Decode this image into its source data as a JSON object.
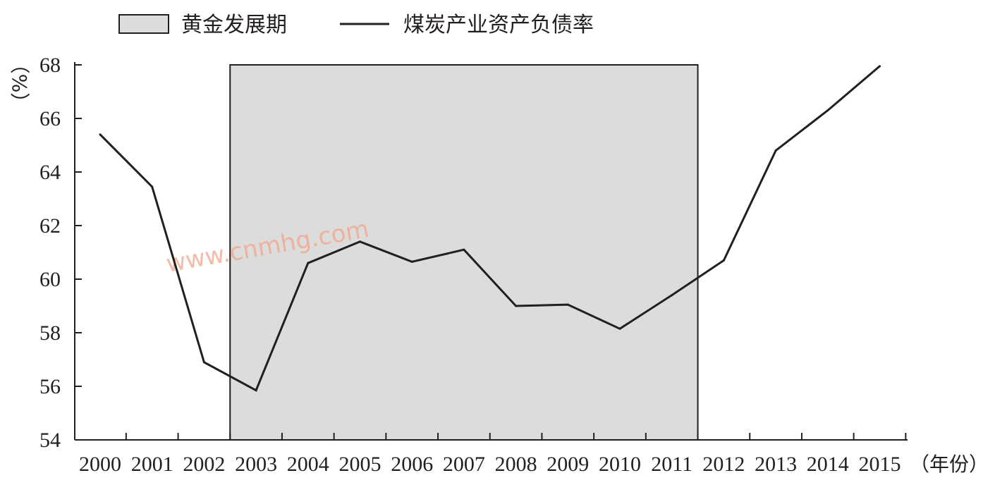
{
  "legend": {
    "band_label": "黄金发展期",
    "line_label": "煤炭产业资产负债率"
  },
  "units": {
    "y_unit": "%",
    "x_unit": "年份"
  },
  "watermark": "www.cnmhg.com",
  "colors": {
    "band_fill": "#dcdcdd",
    "line": "#231f20",
    "axis": "#231f20",
    "watermark": "#f2a58a"
  },
  "chart_data": {
    "type": "line",
    "title": "",
    "xlabel": "年份",
    "ylabel": "%",
    "categories": [
      "2000",
      "2001",
      "2002",
      "2003",
      "2004",
      "2005",
      "2006",
      "2007",
      "2008",
      "2009",
      "2010",
      "2011",
      "2012",
      "2013",
      "2014",
      "2015"
    ],
    "series": [
      {
        "name": "煤炭产业资产负债率",
        "values": [
          65.4,
          63.45,
          56.9,
          55.85,
          60.6,
          61.4,
          60.65,
          61.1,
          59.0,
          59.05,
          58.15,
          59.4,
          60.7,
          64.8,
          66.3,
          67.95
        ]
      }
    ],
    "highlight_band": {
      "label": "黄金发展期",
      "from": "2002",
      "to": "2011",
      "y_top": 68
    },
    "ylim": [
      54,
      68
    ],
    "yticks": [
      54,
      56,
      58,
      60,
      62,
      64,
      66,
      68
    ],
    "grid": false,
    "legend_position": "top-left"
  }
}
